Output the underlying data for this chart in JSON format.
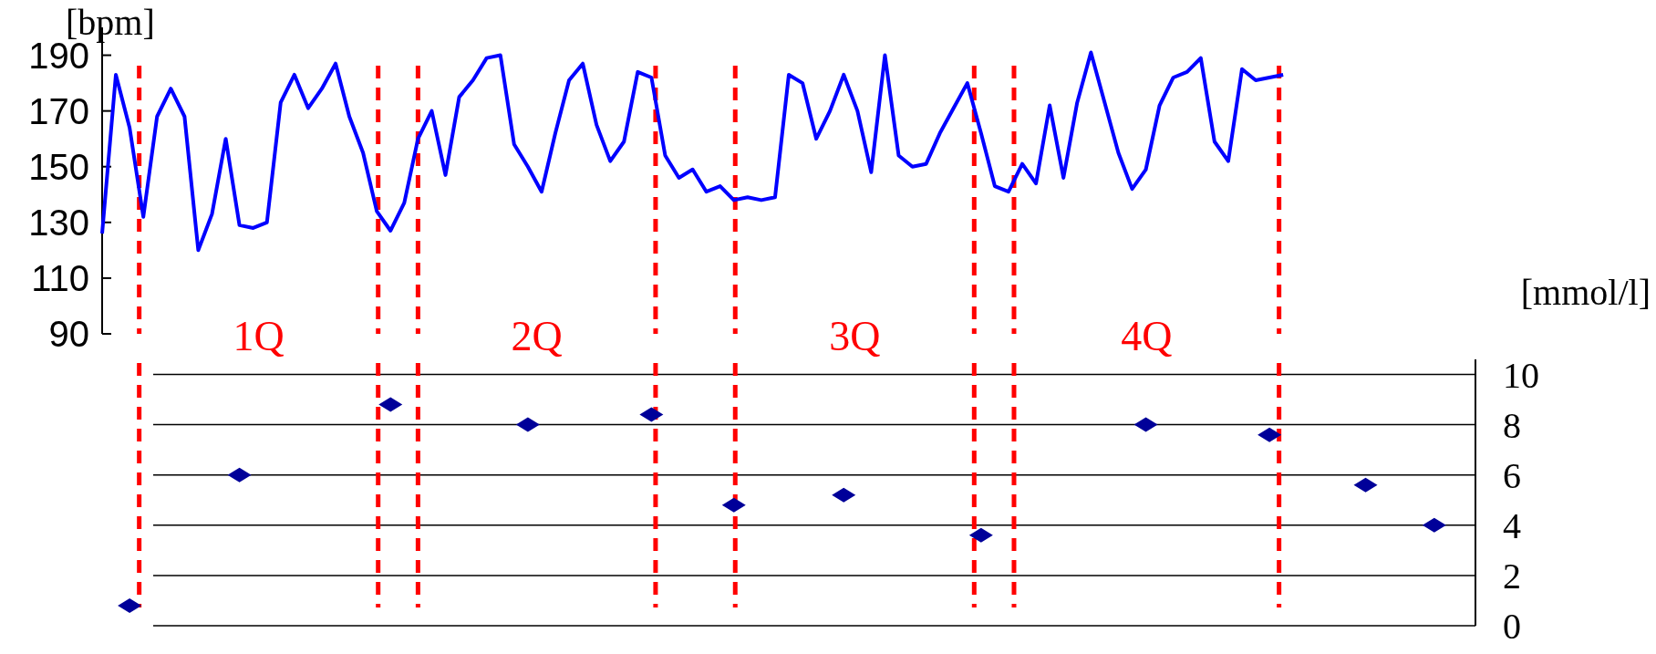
{
  "chart_data": [
    {
      "type": "line",
      "ylabel": "[bpm]",
      "ylim": [
        90,
        200
      ],
      "yticks": [
        90,
        110,
        130,
        150,
        170,
        190
      ],
      "tick_labels": "y",
      "line_style": "solid",
      "categories": [
        null,
        null,
        null,
        null,
        null,
        null,
        null,
        null,
        null,
        null,
        null,
        null,
        null,
        null,
        null,
        null,
        null,
        null,
        null,
        null,
        null,
        null,
        null,
        null,
        null,
        null,
        null,
        null,
        null,
        null,
        null,
        null,
        null,
        null,
        null,
        null,
        null,
        null,
        null,
        null,
        null,
        null,
        null,
        null,
        null,
        null,
        null,
        null,
        null,
        null,
        null,
        null,
        null,
        null,
        null,
        null,
        null,
        null,
        null,
        null,
        null,
        null,
        null,
        null,
        null,
        null,
        null,
        null,
        null,
        null,
        null,
        null,
        null,
        null,
        null,
        null,
        null,
        null,
        null,
        null,
        null,
        null,
        null,
        null,
        null,
        null,
        null,
        null,
        null,
        null,
        null,
        null,
        null,
        null,
        null,
        null,
        null,
        null,
        null,
        null,
        null
      ],
      "series": [
        {
          "color": "#0000ff",
          "values": [
            126,
            183,
            164,
            132,
            168,
            178,
            168,
            120,
            133,
            160,
            129,
            128,
            130,
            173,
            183,
            171,
            178,
            187,
            168,
            155,
            134,
            127,
            137,
            160,
            170,
            147,
            175,
            181,
            189,
            190,
            158,
            150,
            141,
            162,
            181,
            187,
            165,
            152,
            159,
            184,
            182,
            154,
            146,
            149,
            141,
            143,
            138,
            139,
            138,
            139,
            183,
            180,
            160,
            170,
            183,
            170,
            148,
            190,
            154,
            150,
            151,
            162,
            171,
            180,
            162,
            143,
            141,
            151,
            144,
            172,
            146,
            173,
            191,
            173,
            155,
            142,
            149,
            172,
            182,
            184,
            189,
            159,
            152,
            185,
            181,
            182,
            183,
            null,
            null,
            null,
            null,
            null,
            null,
            null,
            null,
            null,
            null,
            null,
            null,
            null,
            null
          ]
        }
      ]
    },
    {
      "type": "scatter",
      "ylabel": "[mmol/l]",
      "ylim": [
        0,
        10.6
      ],
      "yticks": [
        0,
        2,
        4,
        6,
        8,
        10
      ],
      "tick_labels": "y",
      "grid": "y",
      "marker": "diamond",
      "categories": [
        null,
        null,
        null,
        null,
        null,
        null,
        null,
        null,
        null,
        null,
        null,
        null,
        null,
        null,
        null,
        null,
        null,
        null,
        null,
        null,
        null,
        null,
        null,
        null,
        null,
        null,
        null,
        null,
        null,
        null,
        null,
        null,
        null,
        null,
        null,
        null,
        null,
        null,
        null,
        null,
        null,
        null,
        null,
        null,
        null,
        null,
        null,
        null,
        null,
        null,
        null,
        null,
        null,
        null,
        null,
        null,
        null,
        null,
        null,
        null,
        null,
        null,
        null,
        null,
        null,
        null,
        null,
        null,
        null,
        null,
        null,
        null,
        null,
        null,
        null,
        null,
        null,
        null,
        null,
        null,
        null,
        null,
        null,
        null,
        null,
        null,
        null,
        null,
        null,
        null,
        null,
        null,
        null,
        null,
        null,
        null,
        null,
        null,
        null,
        null,
        null
      ],
      "series": [
        {
          "color": "#000099",
          "values": [
            null,
            null,
            0.8,
            null,
            null,
            null,
            null,
            null,
            null,
            null,
            6.0,
            null,
            null,
            null,
            null,
            null,
            null,
            null,
            null,
            null,
            null,
            8.8,
            null,
            null,
            null,
            null,
            null,
            null,
            null,
            null,
            null,
            8.0,
            null,
            null,
            null,
            null,
            null,
            null,
            null,
            null,
            8.4,
            null,
            null,
            null,
            null,
            null,
            4.8,
            null,
            null,
            null,
            null,
            null,
            null,
            null,
            5.2,
            null,
            null,
            null,
            null,
            null,
            null,
            null,
            null,
            null,
            3.6,
            null,
            null,
            null,
            null,
            null,
            null,
            null,
            null,
            null,
            null,
            null,
            8.0,
            null,
            null,
            null,
            null,
            null,
            null,
            null,
            null,
            7.6,
            null,
            null,
            null,
            null,
            null,
            null,
            5.6,
            null,
            null,
            null,
            null,
            4.0,
            null,
            null,
            null
          ]
        }
      ],
      "annotations": [
        "1Q",
        "2Q",
        "3Q",
        "4Q"
      ]
    }
  ]
}
